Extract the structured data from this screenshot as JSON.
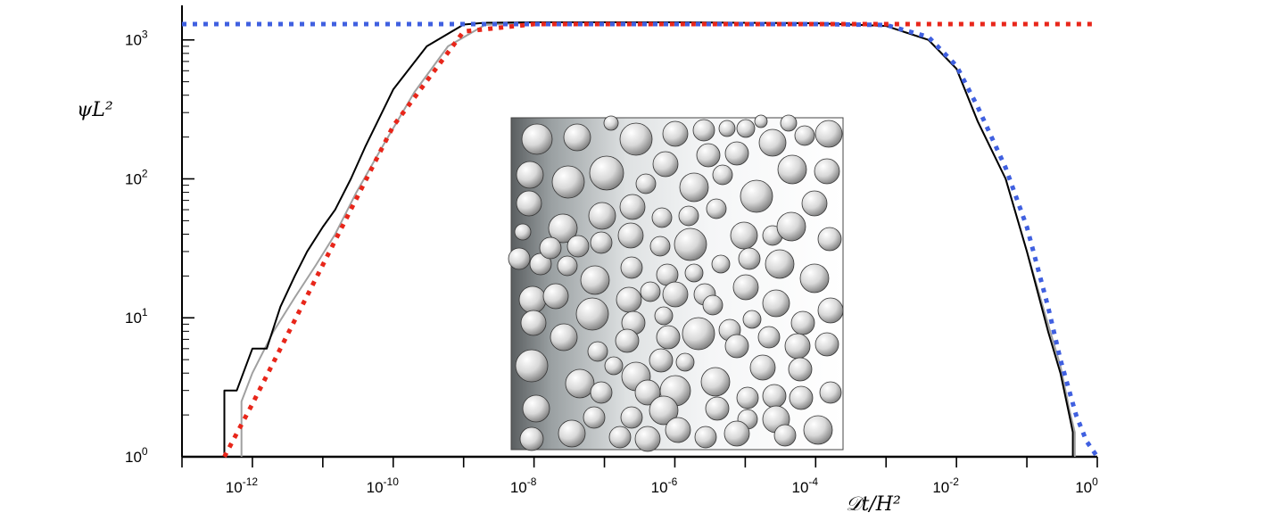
{
  "chart_data": {
    "type": "line",
    "x_scale": "log",
    "y_scale": "log",
    "xlabel": "𝒟t/H²",
    "ylabel": "ψL²",
    "xlim": [
      1e-13,
      1
    ],
    "ylim": [
      1,
      1400
    ],
    "x_ticks": [
      "10-12",
      "10-10",
      "10-8",
      "10-6",
      "10-4",
      "10-2",
      "100"
    ],
    "y_ticks": [
      "100",
      "101",
      "102",
      "103"
    ],
    "grid": false,
    "legend": "none",
    "colors": {
      "series_black": "#000000",
      "series_gray": "#a0a0a0",
      "short_time_asymptote": "#e8261a",
      "long_time_asymptote": "#4060e0"
    },
    "series": [
      {
        "style": "solid-black",
        "x": [
          4e-13,
          4e-13,
          6e-13,
          1e-12,
          1.6e-12,
          2.5e-12,
          4e-12,
          6e-12,
          1e-11,
          1.5e-11,
          2.5e-11,
          4e-11,
          1e-10,
          3e-10,
          1e-09,
          2e-09,
          1e-08,
          1e-06,
          0.0001,
          0.001,
          0.004,
          0.01,
          0.02,
          0.05,
          0.1,
          0.2,
          0.3,
          0.4,
          0.45,
          0.45
        ],
        "y": [
          1,
          3,
          3,
          6,
          6,
          12,
          20,
          30,
          45,
          60,
          100,
          170,
          440,
          900,
          1290,
          1330,
          1340,
          1340,
          1320,
          1260,
          1000,
          620,
          260,
          100,
          30,
          8,
          4,
          2,
          1.5,
          1
        ]
      },
      {
        "style": "solid-gray",
        "x": [
          7e-13,
          7e-13,
          1e-12,
          2e-12,
          4e-12,
          8e-12,
          1.5e-11,
          3e-11,
          7e-11,
          2e-10,
          6e-10,
          2e-09,
          1e-08,
          1e-06,
          0.0001,
          0.001,
          0.004,
          0.01,
          0.02,
          0.05,
          0.1,
          0.2,
          0.3,
          0.4,
          0.48,
          0.48
        ],
        "y": [
          1,
          2.5,
          4,
          8,
          14,
          24,
          40,
          80,
          170,
          420,
          900,
          1280,
          1340,
          1340,
          1320,
          1260,
          1000,
          620,
          260,
          100,
          30,
          9,
          4.5,
          2.2,
          1.5,
          1
        ]
      },
      {
        "style": "dotted-red",
        "x": [
          4e-13,
          1e-12,
          1e-11,
          1e-10,
          1e-09,
          1e-08,
          1e-06,
          0.0001,
          0.01,
          1
        ],
        "y": [
          1,
          2.4,
          24,
          240,
          1150,
          1300,
          1300,
          1300,
          1300,
          1300
        ]
      },
      {
        "style": "dotted-blue",
        "x": [
          1e-13,
          1e-08,
          0.0001,
          0.001,
          0.004,
          0.01,
          0.02,
          0.05,
          0.1,
          0.2,
          0.3,
          0.5,
          0.7,
          1
        ],
        "y": [
          1300,
          1300,
          1300,
          1280,
          1050,
          650,
          330,
          120,
          45,
          12,
          5,
          2,
          1.3,
          1
        ]
      }
    ]
  },
  "inset": {
    "description_icon": "packed-spheres-porous-medium-icon"
  }
}
